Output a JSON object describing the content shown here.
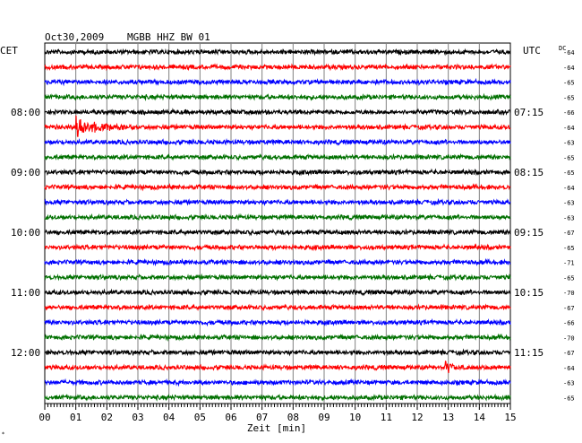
{
  "header": {
    "date": "Oct30,2009",
    "station": "MGBB HHZ BW 01",
    "left_zone": "CET",
    "right_zone": "UTC",
    "dc_label": "DC"
  },
  "xaxis": {
    "label": "Zeit [min]",
    "ticks": [
      "00",
      "01",
      "02",
      "03",
      "04",
      "05",
      "06",
      "07",
      "08",
      "09",
      "10",
      "11",
      "12",
      "13",
      "14",
      "15"
    ]
  },
  "colors": {
    "trace_cycle": [
      "#000000",
      "#ff0000",
      "#0000ff",
      "#007000"
    ],
    "grid": "#808080"
  },
  "chart_data": {
    "type": "line",
    "title": "MGBB HHZ BW 01",
    "xlabel": "Zeit [min]",
    "xlim": [
      0,
      15
    ],
    "rows_per_hour": 4,
    "cet_labels": [
      "08:00",
      "09:00",
      "10:00",
      "11:00",
      "12:00"
    ],
    "utc_labels": [
      "07:15",
      "08:15",
      "09:15",
      "10:15",
      "11:15"
    ],
    "hour_label_rows": [
      4,
      8,
      12,
      16,
      20
    ],
    "dc_offsets": [
      -64,
      -64,
      -65,
      -65,
      -66,
      -64,
      -63,
      -65,
      -65,
      -64,
      -63,
      -63,
      -67,
      -65,
      -71,
      -65,
      -70,
      -67,
      -66,
      -70,
      -67,
      -64,
      -63,
      -65
    ],
    "events": [
      {
        "row": 5,
        "start_min": 1.0,
        "duration_min": 2.0,
        "amplitude": 14
      },
      {
        "row": 21,
        "start_min": 12.9,
        "duration_min": 0.5,
        "amplitude": 11
      }
    ]
  }
}
